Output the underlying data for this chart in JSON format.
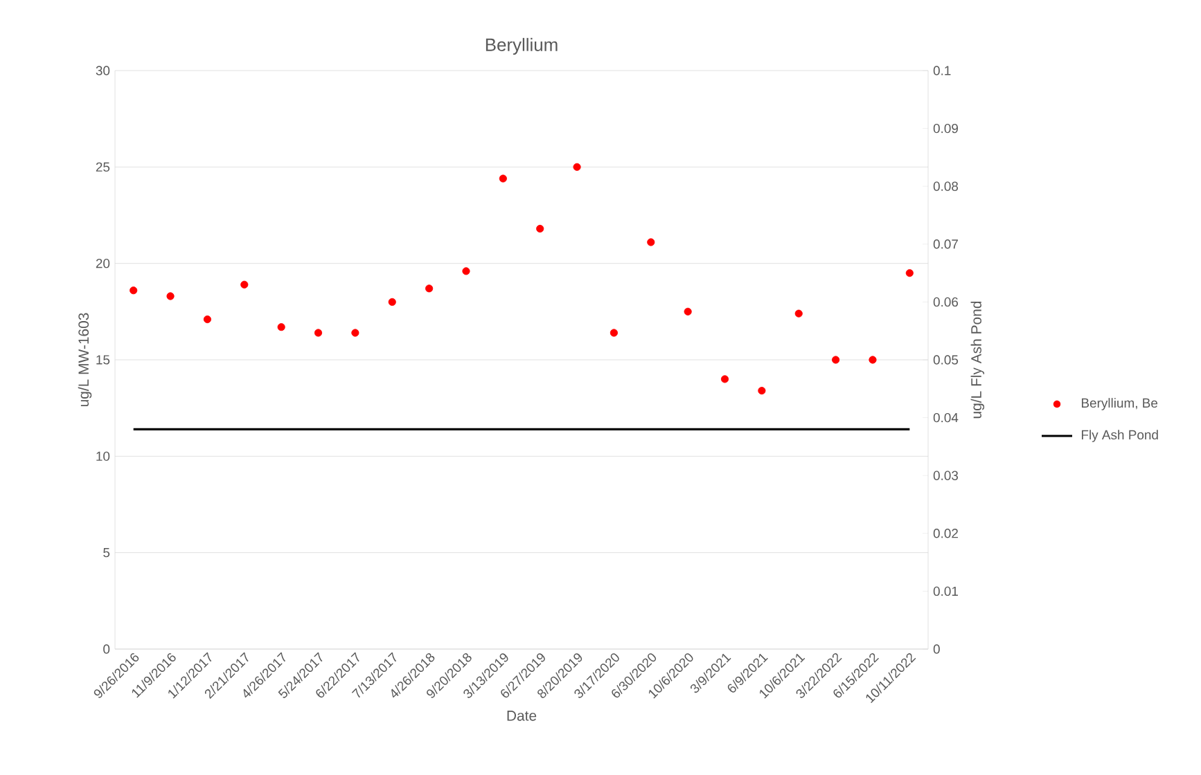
{
  "chart_data": {
    "type": "scatter",
    "title": "Beryllium",
    "xlabel": "Date",
    "ylabel": "ug/L MW-1603",
    "y2label": "ug/L Fly Ash Pond",
    "categories": [
      "9/26/2016",
      "11/9/2016",
      "1/12/2017",
      "2/21/2017",
      "4/26/2017",
      "5/24/2017",
      "6/22/2017",
      "7/13/2017",
      "4/26/2018",
      "9/20/2018",
      "3/13/2019",
      "6/27/2019",
      "8/20/2019",
      "3/17/2020",
      "6/30/2020",
      "10/6/2020",
      "3/9/2021",
      "6/9/2021",
      "10/6/2021",
      "3/22/2022",
      "6/15/2022",
      "10/11/2022"
    ],
    "series": [
      {
        "name": "Beryllium, Be",
        "marker": "circle",
        "color": "#ff0000",
        "values": [
          18.6,
          18.3,
          17.1,
          18.9,
          16.7,
          16.4,
          16.4,
          18.0,
          18.7,
          19.6,
          24.4,
          21.8,
          25.0,
          16.4,
          21.1,
          17.5,
          14.0,
          13.4,
          17.4,
          15.0,
          15.0,
          19.5
        ]
      },
      {
        "name": "Fly Ash Pond",
        "type": "line",
        "axis": "y2",
        "marker": "none",
        "color": "#000000",
        "values": [
          0.038,
          0.038,
          0.038,
          0.038,
          0.038,
          0.038,
          0.038,
          0.038,
          0.038,
          0.038,
          0.038,
          0.038,
          0.038,
          0.038,
          0.038,
          0.038,
          0.038,
          0.038,
          0.038,
          0.038,
          0.038,
          0.038
        ]
      }
    ],
    "ylim": [
      0,
      30
    ],
    "yticks": [
      0,
      5,
      10,
      15,
      20,
      25,
      30
    ],
    "y2lim": [
      0,
      0.1
    ],
    "y2ticks": [
      0,
      0.01,
      0.02,
      0.03,
      0.04,
      0.05,
      0.06,
      0.07,
      0.08,
      0.09,
      0.1
    ],
    "grid": "y",
    "legend": "right"
  }
}
